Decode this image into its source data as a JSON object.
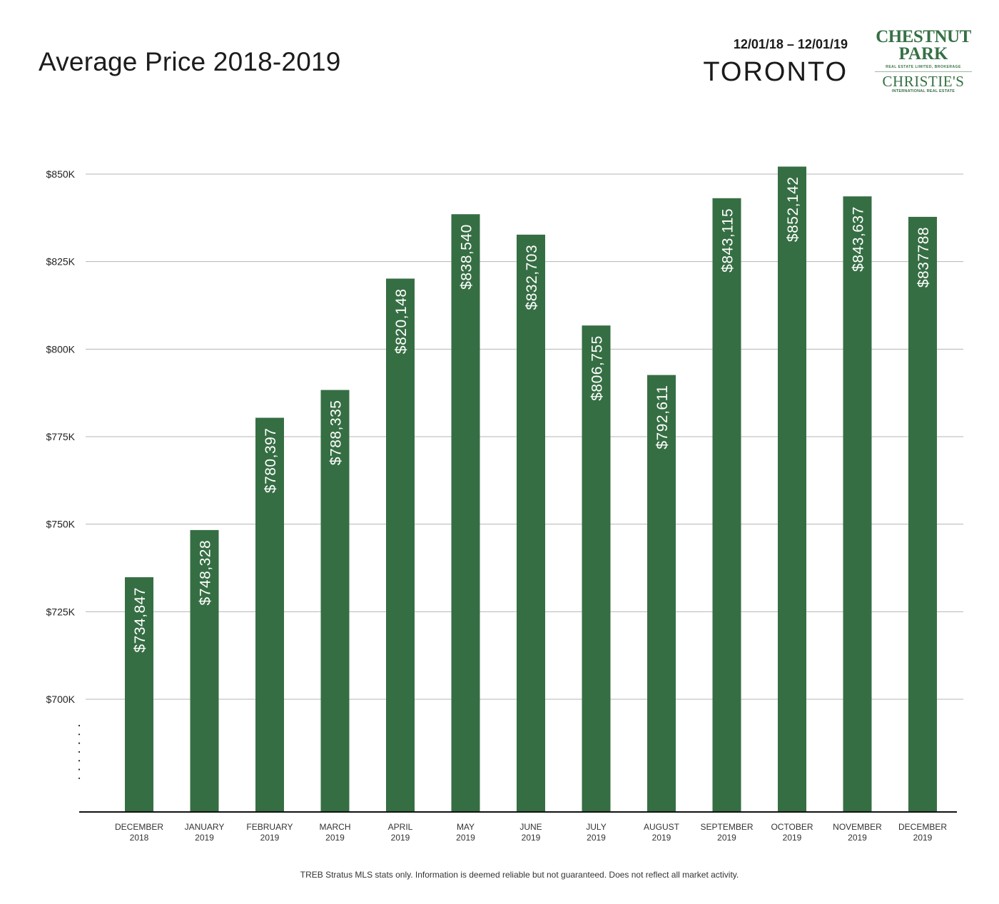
{
  "header": {
    "title": "Average Price 2018-2019",
    "date_range": "12/01/18 – 12/01/19",
    "city": "TORONTO"
  },
  "logo": {
    "line1": "CHESTNUT",
    "line2": "PARK",
    "line3": "REAL ESTATE LIMITED, BROKERAGE",
    "line4": "CHRISTIE'S",
    "line5": "INTERNATIONAL REAL ESTATE"
  },
  "colors": {
    "bar": "#366e43",
    "grid": "#b4b4b4",
    "axis": "#111111",
    "brand": "#367045"
  },
  "footer": "TREB Stratus MLS stats only. Information is deemed reliable but not guaranteed. Does not reflect all market activity.",
  "chart_data": {
    "type": "bar",
    "title": "Average Price 2018-2019",
    "xlabel": "",
    "ylabel": "",
    "ylim": [
      668000,
      853000
    ],
    "axis_break": true,
    "grid": true,
    "legend": "none",
    "yticks": [
      700000,
      725000,
      750000,
      775000,
      800000,
      825000,
      850000
    ],
    "ytick_labels": [
      "$700K",
      "$725K",
      "$750K",
      "$775K",
      "$800K",
      "$825K",
      "$850K"
    ],
    "categories": [
      [
        "DECEMBER",
        "2018"
      ],
      [
        "JANUARY",
        "2019"
      ],
      [
        "FEBRUARY",
        "2019"
      ],
      [
        "MARCH",
        "2019"
      ],
      [
        "APRIL",
        "2019"
      ],
      [
        "MAY",
        "2019"
      ],
      [
        "JUNE",
        "2019"
      ],
      [
        "JULY",
        "2019"
      ],
      [
        "AUGUST",
        "2019"
      ],
      [
        "SEPTEMBER",
        "2019"
      ],
      [
        "OCTOBER",
        "2019"
      ],
      [
        "NOVEMBER",
        "2019"
      ],
      [
        "DECEMBER",
        "2019"
      ]
    ],
    "values": [
      734847,
      748328,
      780397,
      788335,
      820148,
      838540,
      832703,
      806755,
      792611,
      843115,
      852142,
      843637,
      837788
    ],
    "data_labels": [
      "$734,847",
      "$748,328",
      "$780,397",
      "$788,335",
      "$820,148",
      "$838,540",
      "$832,703",
      "$806,755",
      "$792,611",
      "$843,115",
      "$852,142",
      "$843,637",
      "$837788"
    ]
  }
}
